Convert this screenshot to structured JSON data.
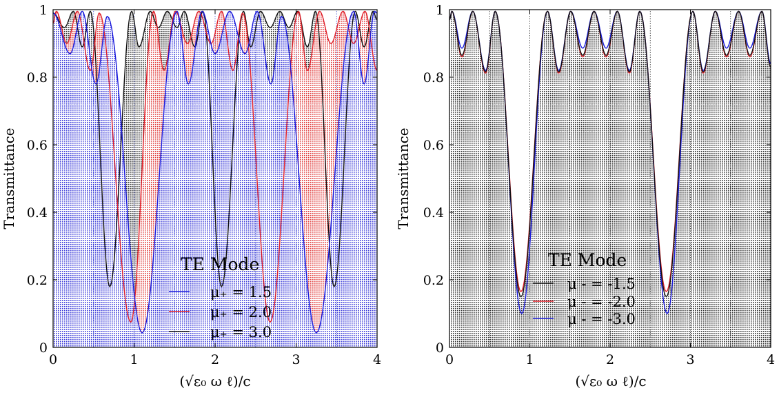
{
  "chart_data": [
    {
      "type": "area",
      "ylabel": "Transmittance",
      "xlabel": "(√ε₀ ω ℓ)/c",
      "xlim": [
        0,
        4
      ],
      "ylim": [
        0,
        1
      ],
      "xticks": [
        "0",
        "1",
        "2",
        "3",
        "4"
      ],
      "yticks": [
        "0",
        "0.2",
        "0.4",
        "0.6",
        "0.8",
        "1"
      ],
      "grid": true,
      "legend_title": "TE Mode",
      "legend_placement": "bottom-center",
      "series": [
        {
          "name": "μ₊ = 1.5",
          "color": "#1a1adc",
          "points": [
            [
              0,
              0.99
            ],
            [
              0.21,
              0.87
            ],
            [
              0.36,
              0.995
            ],
            [
              0.53,
              0.78
            ],
            [
              0.67,
              0.98
            ],
            [
              1.1,
              0.043
            ],
            [
              1.53,
              0.995
            ],
            [
              1.67,
              0.78
            ],
            [
              1.84,
              0.995
            ],
            [
              2.0,
              0.87
            ],
            [
              2.18,
              0.995
            ],
            [
              2.37,
              0.87
            ],
            [
              2.52,
              0.995
            ],
            [
              2.69,
              0.78
            ],
            [
              2.82,
              0.98
            ],
            [
              3.25,
              0.043
            ],
            [
              3.71,
              0.995
            ],
            [
              3.84,
              0.78
            ],
            [
              3.97,
              0.995
            ],
            [
              4.0,
              0.99
            ]
          ]
        },
        {
          "name": "μ₊ = 2.0",
          "color": "#e0202a",
          "points": [
            [
              0,
              0.96
            ],
            [
              0.04,
              0.995
            ],
            [
              0.17,
              0.9
            ],
            [
              0.3,
              0.995
            ],
            [
              0.46,
              0.82
            ],
            [
              0.57,
              0.99
            ],
            [
              0.96,
              0.075
            ],
            [
              1.24,
              0.995
            ],
            [
              1.37,
              0.82
            ],
            [
              1.51,
              0.995
            ],
            [
              1.66,
              0.9
            ],
            [
              1.8,
              0.995
            ],
            [
              1.95,
              0.9
            ],
            [
              2.08,
              0.995
            ],
            [
              2.22,
              0.82
            ],
            [
              2.34,
              0.99
            ],
            [
              2.68,
              0.075
            ],
            [
              3.03,
              0.995
            ],
            [
              3.14,
              0.82
            ],
            [
              3.29,
              0.995
            ],
            [
              3.43,
              0.9
            ],
            [
              3.58,
              0.995
            ],
            [
              3.71,
              0.9
            ],
            [
              3.85,
              0.995
            ],
            [
              4.0,
              0.82
            ]
          ]
        },
        {
          "name": "μ₊ = 3.0",
          "color": "#111111",
          "points": [
            [
              0,
              0.99
            ],
            [
              0.14,
              0.947
            ],
            [
              0.25,
              0.995
            ],
            [
              0.36,
              0.89
            ],
            [
              0.46,
              0.995
            ],
            [
              0.7,
              0.18
            ],
            [
              0.97,
              0.995
            ],
            [
              1.06,
              0.89
            ],
            [
              1.2,
              0.995
            ],
            [
              1.3,
              0.947
            ],
            [
              1.41,
              0.995
            ],
            [
              1.53,
              0.947
            ],
            [
              1.62,
              0.995
            ],
            [
              1.75,
              0.89
            ],
            [
              1.85,
              0.995
            ],
            [
              2.08,
              0.18
            ],
            [
              2.35,
              0.995
            ],
            [
              2.44,
              0.89
            ],
            [
              2.56,
              0.995
            ],
            [
              2.68,
              0.947
            ],
            [
              2.8,
              0.995
            ],
            [
              2.91,
              0.947
            ],
            [
              3.02,
              0.995
            ],
            [
              3.14,
              0.89
            ],
            [
              3.24,
              0.995
            ],
            [
              3.47,
              0.18
            ],
            [
              3.73,
              0.995
            ],
            [
              3.84,
              0.89
            ],
            [
              3.95,
              0.995
            ],
            [
              4.0,
              0.97
            ]
          ]
        }
      ]
    },
    {
      "type": "area",
      "ylabel": "Transmittance",
      "xlabel": "(√ε₀ ω ℓ)/c",
      "xlim": [
        0,
        4
      ],
      "ylim": [
        0,
        1
      ],
      "xticks": [
        "0",
        "1",
        "2",
        "3",
        "4"
      ],
      "yticks": [
        "0",
        "0.2",
        "0.4",
        "0.6",
        "0.8",
        "1"
      ],
      "grid": true,
      "legend_title": "TE Mode",
      "legend_placement": "bottom-center",
      "series": [
        {
          "name": "μ - = -1.5",
          "color": "#111111",
          "points": [
            [
              0,
              0.97
            ],
            [
              0.03,
              0.995
            ],
            [
              0.155,
              0.865
            ],
            [
              0.29,
              0.995
            ],
            [
              0.45,
              0.816
            ],
            [
              0.57,
              0.995
            ],
            [
              0.89,
              0.15
            ],
            [
              1.22,
              0.995
            ],
            [
              1.36,
              0.816
            ],
            [
              1.51,
              0.995
            ],
            [
              1.66,
              0.865
            ],
            [
              1.8,
              0.995
            ],
            [
              1.95,
              0.865
            ],
            [
              2.09,
              0.995
            ],
            [
              2.24,
              0.816
            ],
            [
              2.37,
              0.995
            ],
            [
              2.7,
              0.15
            ],
            [
              3.03,
              0.995
            ],
            [
              3.16,
              0.816
            ],
            [
              3.31,
              0.995
            ],
            [
              3.45,
              0.865
            ],
            [
              3.6,
              0.995
            ],
            [
              3.74,
              0.865
            ],
            [
              3.89,
              0.995
            ],
            [
              4.0,
              0.83
            ]
          ]
        },
        {
          "name": "μ - = -2.0",
          "color": "#e0202a",
          "points": [
            [
              0,
              0.97
            ],
            [
              0.03,
              0.995
            ],
            [
              0.155,
              0.86
            ],
            [
              0.29,
              0.995
            ],
            [
              0.45,
              0.812
            ],
            [
              0.57,
              0.995
            ],
            [
              0.89,
              0.165
            ],
            [
              1.22,
              0.995
            ],
            [
              1.36,
              0.812
            ],
            [
              1.51,
              0.995
            ],
            [
              1.66,
              0.86
            ],
            [
              1.8,
              0.995
            ],
            [
              1.95,
              0.86
            ],
            [
              2.09,
              0.995
            ],
            [
              2.24,
              0.812
            ],
            [
              2.37,
              0.995
            ],
            [
              2.7,
              0.165
            ],
            [
              3.03,
              0.995
            ],
            [
              3.16,
              0.812
            ],
            [
              3.31,
              0.995
            ],
            [
              3.45,
              0.86
            ],
            [
              3.6,
              0.995
            ],
            [
              3.74,
              0.86
            ],
            [
              3.89,
              0.995
            ],
            [
              4.0,
              0.83
            ]
          ]
        },
        {
          "name": "μ - = -3.0",
          "color": "#1a1adc",
          "points": [
            [
              0,
              0.97
            ],
            [
              0.03,
              0.995
            ],
            [
              0.155,
              0.886
            ],
            [
              0.29,
              0.995
            ],
            [
              0.45,
              0.82
            ],
            [
              0.57,
              0.995
            ],
            [
              0.9,
              0.1
            ],
            [
              1.22,
              0.995
            ],
            [
              1.36,
              0.82
            ],
            [
              1.51,
              0.995
            ],
            [
              1.66,
              0.886
            ],
            [
              1.8,
              0.995
            ],
            [
              1.95,
              0.886
            ],
            [
              2.09,
              0.995
            ],
            [
              2.24,
              0.82
            ],
            [
              2.37,
              0.995
            ],
            [
              2.71,
              0.1
            ],
            [
              3.03,
              0.995
            ],
            [
              3.16,
              0.82
            ],
            [
              3.31,
              0.995
            ],
            [
              3.45,
              0.886
            ],
            [
              3.6,
              0.995
            ],
            [
              3.74,
              0.886
            ],
            [
              3.89,
              0.995
            ],
            [
              4.0,
              0.84
            ]
          ]
        }
      ]
    }
  ]
}
